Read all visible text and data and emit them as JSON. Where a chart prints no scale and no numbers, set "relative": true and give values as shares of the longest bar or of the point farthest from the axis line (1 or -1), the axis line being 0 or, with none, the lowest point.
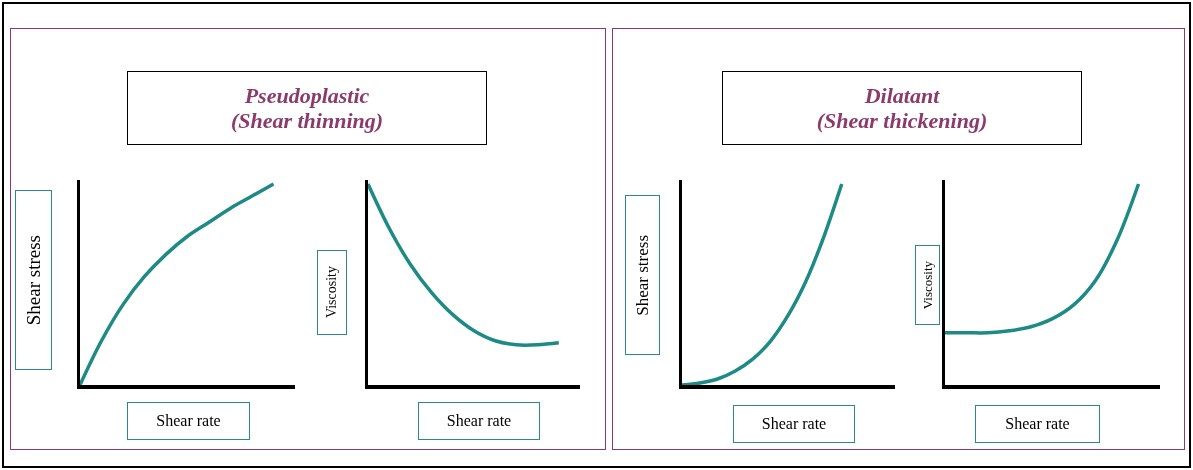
{
  "chart_data": [
    {
      "type": "line",
      "title": "Pseudoplastic\n(Shear thinning)",
      "xlabel": "Shear rate",
      "ylabel": "Shear stress",
      "relative": true,
      "marker": "none",
      "line_style": "solid",
      "categories": [
        null,
        null,
        null,
        null,
        null,
        null,
        null,
        null,
        null,
        null,
        null
      ],
      "series": [
        {
          "color": "#1e8a86",
          "values": [
            0,
            0.22,
            0.4,
            0.54,
            0.65,
            0.74,
            0.81,
            0.88,
            0.94,
            1.0,
            null
          ]
        }
      ]
    },
    {
      "type": "line",
      "xlabel": "Shear rate",
      "ylabel": "Viscosity",
      "relative": true,
      "marker": "none",
      "line_style": "solid",
      "categories": [
        null,
        null,
        null,
        null,
        null,
        null,
        null,
        null,
        null,
        null,
        null
      ],
      "series": [
        {
          "color": "#1e8a86",
          "values": [
            1.0,
            0.78,
            0.6,
            0.46,
            0.35,
            0.27,
            0.22,
            0.2,
            0.2,
            0.21,
            null
          ]
        }
      ]
    },
    {
      "type": "line",
      "title": "Dilatant\n(Shear thickening)",
      "xlabel": "Shear rate",
      "ylabel": "Shear stress",
      "relative": true,
      "marker": "none",
      "line_style": "solid",
      "categories": [
        null,
        null,
        null,
        null,
        null,
        null,
        null,
        null,
        null,
        null,
        null,
        null,
        null
      ],
      "series": [
        {
          "color": "#1e8a86",
          "values": [
            0,
            0.01,
            0.03,
            0.07,
            0.13,
            0.22,
            0.35,
            0.52,
            0.74,
            1.0,
            null,
            null,
            null
          ]
        }
      ]
    },
    {
      "type": "line",
      "xlabel": "Shear rate",
      "ylabel": "Viscosity",
      "relative": true,
      "marker": "none",
      "line_style": "solid",
      "categories": [
        null,
        null,
        null,
        null,
        null,
        null,
        null,
        null,
        null,
        null,
        null
      ],
      "series": [
        {
          "color": "#1e8a86",
          "values": [
            0.26,
            0.26,
            0.26,
            0.27,
            0.29,
            0.33,
            0.4,
            0.52,
            0.72,
            1.0,
            null
          ]
        }
      ]
    }
  ]
}
